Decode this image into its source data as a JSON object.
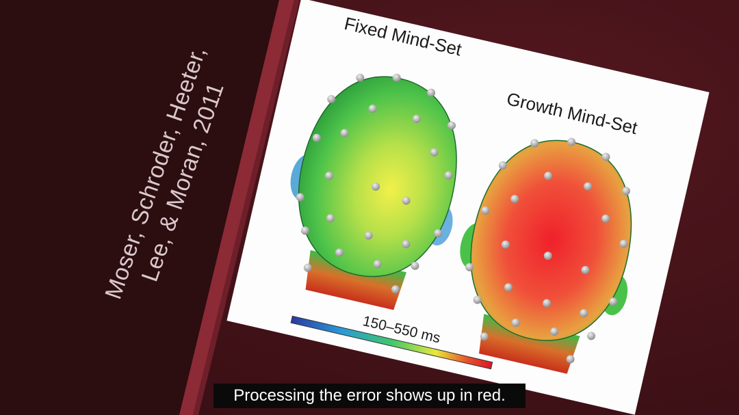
{
  "slide": {
    "citation_line1": "Moser, Schroder, Heeter,",
    "citation_line2": "Lee, & Moran, 2011"
  },
  "figure": {
    "label_left": "Fixed Mind-Set",
    "label_right": "Growth Mind-Set",
    "colorbar_label": "150–550 ms",
    "colorbar_colors": [
      "#2a3aa0",
      "#2a9ad8",
      "#3ec86a",
      "#e8e83a",
      "#e8502a",
      "#d81a2a"
    ]
  },
  "subtitle": {
    "text": "Processing the error shows up in red."
  }
}
